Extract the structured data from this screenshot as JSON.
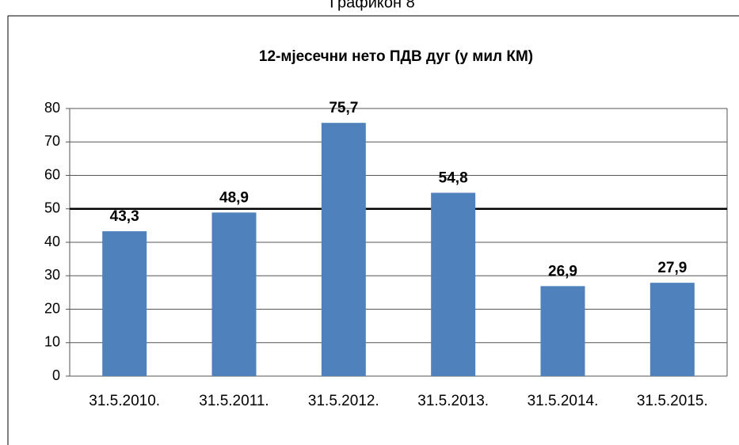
{
  "caption": "Графикон 8",
  "chart_data": {
    "type": "bar",
    "title": "12-мјесечни  нето ПДВ дуг (у мил КМ)",
    "categories": [
      "31.5.2010.",
      "31.5.2011.",
      "31.5.2012.",
      "31.5.2013.",
      "31.5.2014.",
      "31.5.2015."
    ],
    "values": [
      43.3,
      48.9,
      75.7,
      54.8,
      26.9,
      27.9
    ],
    "value_labels": [
      "43,3",
      "48,9",
      "75,7",
      "54,8",
      "26,9",
      "27,9"
    ],
    "color": "#4f81bd",
    "ylim": [
      0,
      80
    ],
    "yticks": [
      0,
      10,
      20,
      30,
      40,
      50,
      60,
      70,
      80
    ],
    "grid": true,
    "reference_line": 50
  }
}
